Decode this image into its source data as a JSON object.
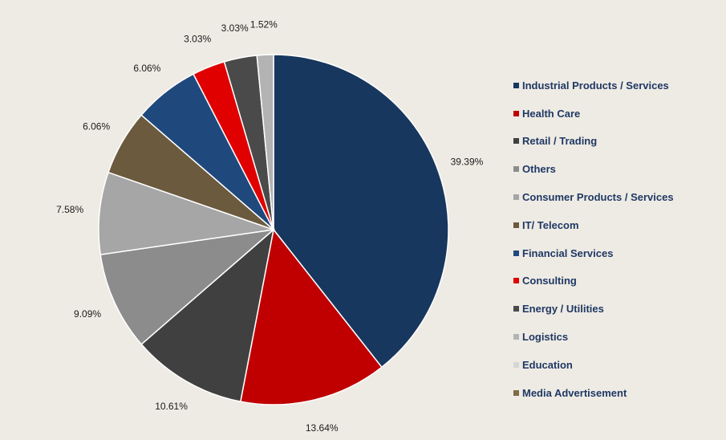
{
  "chart_data": {
    "type": "pie",
    "title": "",
    "legend_position": "right",
    "categories": [
      "Industrial Products / Services",
      "Health Care",
      "Retail / Trading",
      "Others",
      "Consumer Products / Services",
      "IT/ Telecom",
      "Financial Services",
      "Consulting",
      "Energy / Utilities",
      "Logistics",
      "Education",
      "Media Advertisement"
    ],
    "values": [
      39.39,
      13.64,
      10.61,
      9.09,
      7.58,
      6.06,
      6.06,
      3.03,
      3.03,
      1.52,
      0,
      0
    ],
    "value_labels": [
      "39.39%",
      "13.64%",
      "10.61%",
      "9.09%",
      "7.58%",
      "6.06%",
      "6.06%",
      "3.03%",
      "3.03%",
      "1.52%",
      "",
      ""
    ],
    "colors": [
      "#17375e",
      "#c00000",
      "#404040",
      "#8c8c8c",
      "#a6a6a6",
      "#6b5a3e",
      "#1f497d",
      "#e00000",
      "#4a4a4a",
      "#b3b3b3",
      "#d6d6d6",
      "#7f6a4a"
    ]
  }
}
